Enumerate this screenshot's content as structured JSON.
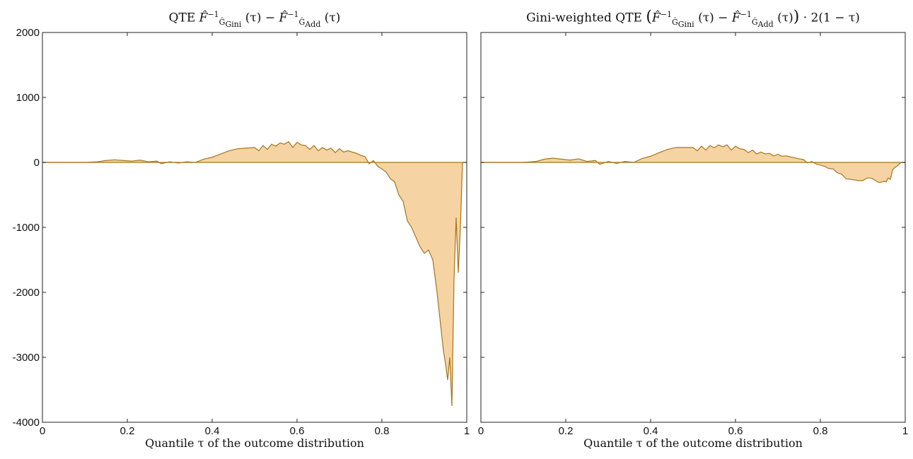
{
  "chart_data": [
    {
      "type": "area",
      "title": "QTE F̂⁻¹_Ĝ_Gini (τ) − F̂⁻¹_Ĝ_Add (τ)",
      "title_parts": {
        "prefix": "QTE",
        "term1_sub": "Gini",
        "term2_sub": "Add",
        "arg": "(τ)"
      },
      "xlabel": "Quantile τ of the outcome distribution",
      "ylabel": "",
      "xlim": [
        0,
        1
      ],
      "ylim": [
        -4000,
        2000
      ],
      "xticks": [
        0,
        0.2,
        0.4,
        0.6,
        0.8,
        1
      ],
      "xtick_labels": [
        "0",
        "0.2",
        "0.4",
        "0.6",
        "0.8",
        "1"
      ],
      "yticks": [
        2000,
        1000,
        0,
        -1000,
        -2000,
        -3000,
        -4000
      ],
      "ytick_labels": [
        "2000",
        "1000",
        "0",
        "-1000",
        "-2000",
        "-3000",
        "-4000"
      ],
      "fill_color": "#f5d3a3",
      "line_color": "#a8741c",
      "x": [
        0,
        0.1,
        0.13,
        0.15,
        0.17,
        0.19,
        0.21,
        0.23,
        0.25,
        0.27,
        0.28,
        0.3,
        0.32,
        0.34,
        0.36,
        0.38,
        0.4,
        0.42,
        0.44,
        0.46,
        0.48,
        0.5,
        0.51,
        0.52,
        0.53,
        0.54,
        0.55,
        0.56,
        0.57,
        0.58,
        0.59,
        0.6,
        0.61,
        0.62,
        0.63,
        0.64,
        0.65,
        0.66,
        0.67,
        0.68,
        0.69,
        0.7,
        0.71,
        0.72,
        0.73,
        0.74,
        0.75,
        0.76,
        0.77,
        0.78,
        0.79,
        0.8,
        0.81,
        0.82,
        0.83,
        0.84,
        0.85,
        0.86,
        0.87,
        0.88,
        0.89,
        0.9,
        0.91,
        0.92,
        0.93,
        0.935,
        0.94,
        0.945,
        0.95,
        0.955,
        0.96,
        0.965,
        0.97,
        0.975,
        0.98,
        0.985,
        0.99
      ],
      "y": [
        0,
        0,
        10,
        30,
        40,
        30,
        20,
        35,
        10,
        20,
        -20,
        10,
        -10,
        10,
        0,
        50,
        80,
        130,
        180,
        210,
        220,
        230,
        180,
        260,
        200,
        280,
        250,
        300,
        280,
        320,
        230,
        310,
        270,
        260,
        200,
        260,
        180,
        230,
        190,
        220,
        150,
        210,
        160,
        180,
        160,
        140,
        110,
        90,
        -20,
        30,
        -60,
        -100,
        -150,
        -250,
        -300,
        -500,
        -600,
        -900,
        -1000,
        -1150,
        -1300,
        -1400,
        -1350,
        -1500,
        -2000,
        -2300,
        -2600,
        -2900,
        -3100,
        -3350,
        -3000,
        -3750,
        -1800,
        -850,
        -1700,
        -1000,
        0
      ]
    },
    {
      "type": "area",
      "title": "Gini-weighted QTE (F̂⁻¹_Ĝ_Gini (τ) − F̂⁻¹_Ĝ_Add (τ)) · 2(1 − τ)",
      "title_parts": {
        "prefix": "Gini-weighted QTE",
        "term1_sub": "Gini",
        "term2_sub": "Add",
        "arg": "(τ)",
        "suffix": "· 2(1 − τ)"
      },
      "xlabel": "Quantile τ of the outcome distribution",
      "ylabel": "",
      "xlim": [
        0,
        1
      ],
      "ylim": [
        -4000,
        2000
      ],
      "xticks": [
        0,
        0.2,
        0.4,
        0.6,
        0.8,
        1
      ],
      "xtick_labels": [
        "0",
        "0.2",
        "0.4",
        "0.6",
        "0.8",
        "1"
      ],
      "yticks": [
        2000,
        1000,
        0,
        -1000,
        -2000,
        -3000,
        -4000
      ],
      "ytick_labels": [
        "",
        "",
        "",
        "",
        "",
        "",
        ""
      ],
      "fill_color": "#f5d3a3",
      "line_color": "#a8741c",
      "x": [
        0,
        0.1,
        0.13,
        0.15,
        0.17,
        0.19,
        0.21,
        0.23,
        0.25,
        0.27,
        0.28,
        0.3,
        0.32,
        0.34,
        0.36,
        0.38,
        0.4,
        0.42,
        0.44,
        0.46,
        0.48,
        0.5,
        0.51,
        0.52,
        0.53,
        0.54,
        0.55,
        0.56,
        0.57,
        0.58,
        0.59,
        0.6,
        0.61,
        0.62,
        0.63,
        0.64,
        0.65,
        0.66,
        0.67,
        0.68,
        0.69,
        0.7,
        0.71,
        0.72,
        0.73,
        0.74,
        0.75,
        0.76,
        0.77,
        0.78,
        0.79,
        0.8,
        0.81,
        0.82,
        0.83,
        0.84,
        0.85,
        0.86,
        0.87,
        0.88,
        0.89,
        0.9,
        0.91,
        0.92,
        0.93,
        0.935,
        0.94,
        0.945,
        0.95,
        0.955,
        0.96,
        0.965,
        0.97,
        0.975,
        0.98,
        0.985,
        0.99,
        1
      ],
      "y": [
        0,
        0,
        15,
        50,
        65,
        50,
        35,
        55,
        15,
        30,
        -30,
        15,
        -15,
        15,
        0,
        60,
        95,
        150,
        200,
        230,
        230,
        230,
        180,
        250,
        190,
        260,
        225,
        270,
        240,
        270,
        190,
        250,
        210,
        200,
        150,
        190,
        130,
        160,
        130,
        140,
        100,
        125,
        95,
        100,
        85,
        70,
        55,
        45,
        -10,
        15,
        -25,
        -40,
        -60,
        -95,
        -100,
        -160,
        -180,
        -250,
        -260,
        -270,
        -280,
        -280,
        -240,
        -240,
        -280,
        -300,
        -310,
        -300,
        -290,
        -300,
        -240,
        -260,
        -120,
        -80,
        -60,
        -30,
        0,
        0
      ]
    }
  ]
}
